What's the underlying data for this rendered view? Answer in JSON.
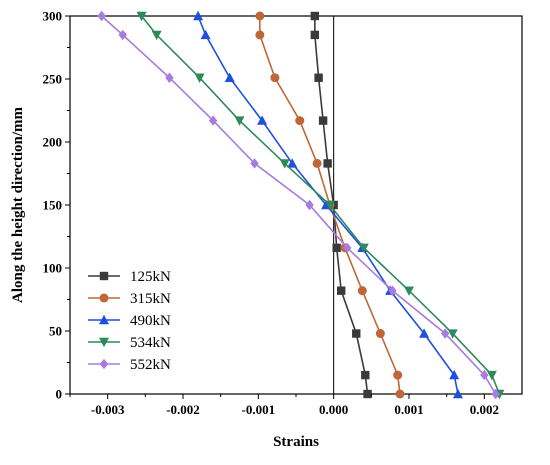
{
  "chart_data": {
    "type": "line",
    "xlabel": "Strains",
    "ylabel": "Along the height direction/mm",
    "xlim": [
      -0.0035,
      0.0025
    ],
    "ylim": [
      0,
      300
    ],
    "xticks": [
      -0.003,
      -0.002,
      -0.001,
      0.0,
      0.001,
      0.002
    ],
    "xtick_labels": [
      "-0.003",
      "-0.002",
      "-0.001",
      "0.000",
      "0.001",
      "0.002"
    ],
    "yticks": [
      0,
      50,
      100,
      150,
      200,
      250,
      300
    ],
    "ytick_labels": [
      "0",
      "50",
      "100",
      "150",
      "200",
      "250",
      "300"
    ],
    "zero_reference_line": true,
    "grid": false,
    "legend_position": "bottom-left",
    "series": [
      {
        "name": "125kN",
        "color": "#3a3a3a",
        "marker": "square",
        "points": [
          [
            0.00045,
            0
          ],
          [
            0.00042,
            15
          ],
          [
            0.0003,
            48
          ],
          [
            0.0001,
            82
          ],
          [
            4e-05,
            116
          ],
          [
            0.0,
            150
          ],
          [
            -8e-05,
            183
          ],
          [
            -0.00014,
            217
          ],
          [
            -0.0002,
            251
          ],
          [
            -0.00025,
            285
          ],
          [
            -0.00025,
            300
          ]
        ]
      },
      {
        "name": "315kN",
        "color": "#c0673a",
        "marker": "circle",
        "points": [
          [
            0.00088,
            0
          ],
          [
            0.00085,
            15
          ],
          [
            0.00062,
            48
          ],
          [
            0.00038,
            82
          ],
          [
            0.00015,
            116
          ],
          [
            -5e-05,
            150
          ],
          [
            -0.00022,
            183
          ],
          [
            -0.00045,
            217
          ],
          [
            -0.00078,
            251
          ],
          [
            -0.00098,
            285
          ],
          [
            -0.00098,
            300
          ]
        ]
      },
      {
        "name": "490kN",
        "color": "#1f4fe0",
        "marker": "triangle-up",
        "points": [
          [
            0.00165,
            0
          ],
          [
            0.0016,
            15
          ],
          [
            0.0012,
            48
          ],
          [
            0.00075,
            82
          ],
          [
            0.00038,
            116
          ],
          [
            -0.0001,
            150
          ],
          [
            -0.00055,
            183
          ],
          [
            -0.00095,
            217
          ],
          [
            -0.00138,
            251
          ],
          [
            -0.0017,
            285
          ],
          [
            -0.0018,
            300
          ]
        ]
      },
      {
        "name": "534kN",
        "color": "#2d8a5a",
        "marker": "triangle-down",
        "points": [
          [
            0.0022,
            0
          ],
          [
            0.0021,
            15
          ],
          [
            0.00158,
            48
          ],
          [
            0.001,
            82
          ],
          [
            0.0004,
            116
          ],
          [
            -5e-05,
            150
          ],
          [
            -0.00065,
            183
          ],
          [
            -0.00125,
            217
          ],
          [
            -0.00178,
            251
          ],
          [
            -0.00235,
            285
          ],
          [
            -0.00255,
            300
          ]
        ]
      },
      {
        "name": "552kN",
        "color": "#a77be0",
        "marker": "diamond",
        "points": [
          [
            0.00215,
            0
          ],
          [
            0.002,
            15
          ],
          [
            0.00148,
            48
          ],
          [
            0.00078,
            82
          ],
          [
            0.00018,
            116
          ],
          [
            -0.00032,
            150
          ],
          [
            -0.00105,
            183
          ],
          [
            -0.0016,
            217
          ],
          [
            -0.00218,
            251
          ],
          [
            -0.0028,
            285
          ],
          [
            -0.00308,
            300
          ]
        ]
      }
    ]
  }
}
